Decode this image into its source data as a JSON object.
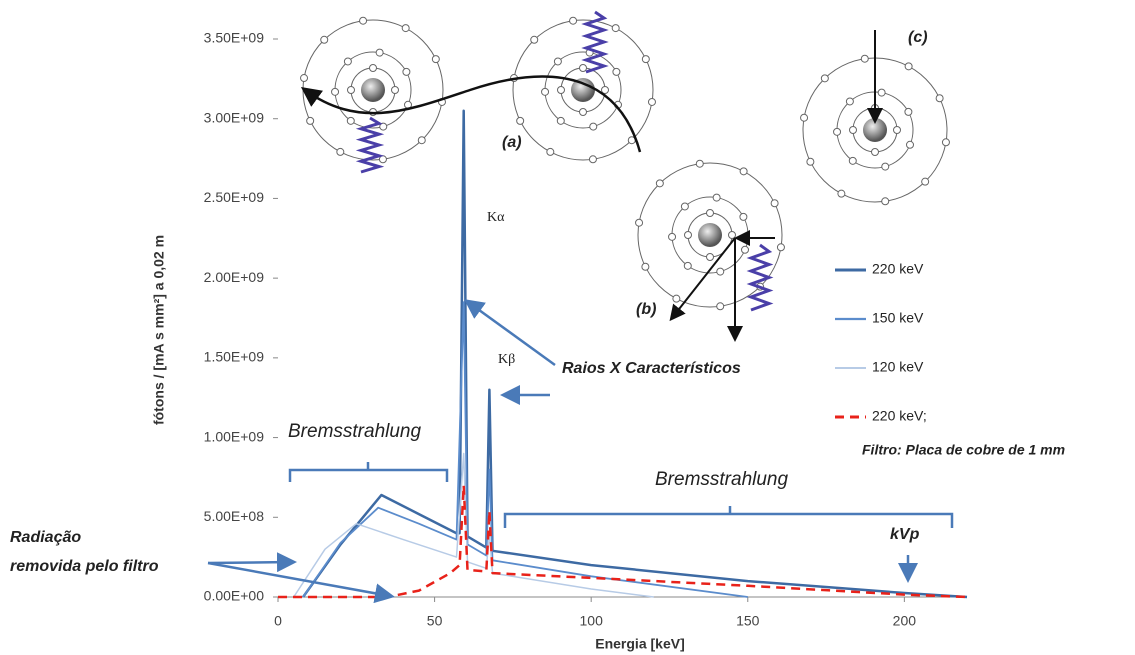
{
  "chart_data": {
    "type": "line",
    "x_label": "Energia  [keV]",
    "y_label": "fótons / [mA s mm²] a 0,02 m",
    "xlim": [
      0,
      220
    ],
    "ylim": [
      0,
      3500000000
    ],
    "xticks": [
      0,
      50,
      100,
      150,
      200
    ],
    "yticks": [
      {
        "value": 0,
        "label": "0.00E+00"
      },
      {
        "value": 500000000,
        "label": "5.00E+08"
      },
      {
        "value": 1000000000,
        "label": "1.00E+09"
      },
      {
        "value": 1500000000,
        "label": "1.50E+09"
      },
      {
        "value": 2000000000,
        "label": "2.00E+09"
      },
      {
        "value": 2500000000,
        "label": "2.50E+09"
      },
      {
        "value": 3000000000,
        "label": "3.00E+09"
      },
      {
        "value": 3500000000,
        "label": "3.50E+09"
      }
    ],
    "series": [
      {
        "name": "220 keV",
        "color": "#3d6aa3",
        "width": 2.5,
        "dashed": false,
        "x": [
          8,
          20,
          33,
          45,
          57,
          58,
          59.3,
          60.5,
          66.5,
          67.5,
          68.5,
          100,
          150,
          200,
          220
        ],
        "values": [
          0,
          330000000,
          640000000,
          520000000,
          400000000,
          400000000,
          3050000000,
          380000000,
          310000000,
          1300000000,
          290000000,
          200000000,
          100000000,
          25000000,
          0
        ]
      },
      {
        "name": "150 keV",
        "color": "#5b8ccc",
        "width": 1.8,
        "dashed": false,
        "x": [
          8,
          20,
          32,
          45,
          57,
          59.3,
          60.5,
          66.5,
          67.5,
          68.5,
          100,
          150
        ],
        "values": [
          0,
          340000000,
          560000000,
          460000000,
          360000000,
          1850000000,
          330000000,
          260000000,
          800000000,
          230000000,
          130000000,
          0
        ]
      },
      {
        "name": "120 keV",
        "color": "#b7cbe6",
        "width": 1.5,
        "dashed": false,
        "x": [
          5,
          15,
          25,
          40,
          57,
          59.3,
          60.5,
          66.5,
          67.5,
          68.5,
          100,
          120
        ],
        "values": [
          0,
          300000000,
          460000000,
          360000000,
          250000000,
          900000000,
          220000000,
          180000000,
          400000000,
          150000000,
          50000000,
          0
        ]
      },
      {
        "name": "220 keV;",
        "color": "#e8221a",
        "width": 2.5,
        "dashed": true,
        "x": [
          0,
          35,
          45,
          55,
          58,
          59.3,
          60.5,
          66.5,
          67.5,
          68.5,
          100,
          150,
          200,
          220
        ],
        "values": [
          0,
          0,
          40000000,
          150000000,
          200000000,
          700000000,
          170000000,
          160000000,
          540000000,
          150000000,
          120000000,
          70000000,
          15000000,
          0
        ]
      }
    ],
    "legend_note": "Filtro: Placa de cobre de 1 mm",
    "annotations": [
      "(a)",
      "(b)",
      "(c)",
      "Kα",
      "Kβ",
      "Raios X Característicos",
      "Bremsstrahlung",
      "Bremsstrahlung",
      "Radiação",
      "removida pelo filtro",
      "kVp"
    ]
  }
}
